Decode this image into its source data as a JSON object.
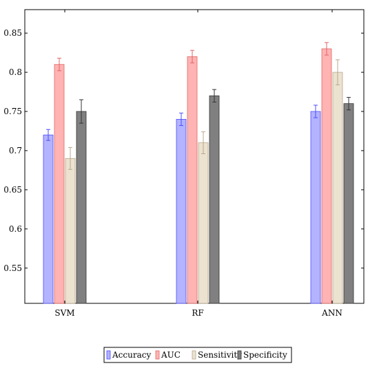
{
  "chart_data": {
    "type": "bar",
    "categories": [
      "SVM",
      "RF",
      "ANN"
    ],
    "series": [
      {
        "name": "Accuracy",
        "values": [
          0.72,
          0.74,
          0.75
        ],
        "errors": [
          0.007,
          0.008,
          0.008
        ],
        "color": "#b3b3ff",
        "stroke": "#4d4dff"
      },
      {
        "name": "AUC",
        "values": [
          0.81,
          0.82,
          0.83
        ],
        "errors": [
          0.008,
          0.008,
          0.008
        ],
        "color": "#ffb3b3",
        "stroke": "#e06666"
      },
      {
        "name": "Sensitivity",
        "values": [
          0.69,
          0.71,
          0.8
        ],
        "errors": [
          0.014,
          0.014,
          0.016
        ],
        "color": "#ece2d0",
        "stroke": "#b8a88c"
      },
      {
        "name": "Specificity",
        "values": [
          0.75,
          0.77,
          0.76
        ],
        "errors": [
          0.015,
          0.008,
          0.008
        ],
        "color": "#808080",
        "stroke": "#333333"
      }
    ],
    "ylim": [
      0.505,
      0.88
    ],
    "yticks": [
      0.55,
      0.6,
      0.65,
      0.7,
      0.75,
      0.8,
      0.85
    ],
    "ytick_labels": [
      "0.55",
      "0.6",
      "0.65",
      "0.7",
      "0.75",
      "0.8",
      "0.85"
    ],
    "legend_position": "bottom-center",
    "grid": false,
    "title": "",
    "xlabel": "",
    "ylabel": ""
  }
}
